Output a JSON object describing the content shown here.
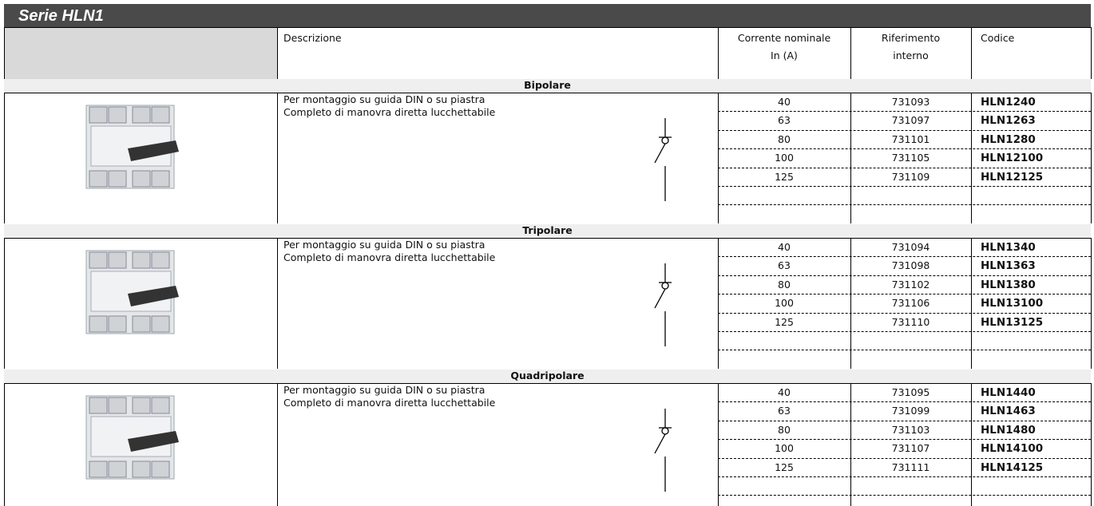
{
  "header": {
    "title": "Serie HLN1"
  },
  "columns": {
    "descrizione": "Descrizione",
    "corrente": [
      "Corrente nominale",
      "In (A)"
    ],
    "riferimento": [
      "Riferimento",
      "interno"
    ],
    "codice": "Codice"
  },
  "sections": [
    {
      "name": "Bipolare",
      "description": [
        "Per montaggio su guida DIN o su piastra",
        "Completo di manovra diretta lucchettabile"
      ],
      "rows": [
        [
          40,
          731093,
          "HLN1240"
        ],
        [
          63,
          731097,
          "HLN1263"
        ],
        [
          80,
          731101,
          "HLN1280"
        ],
        [
          100,
          731105,
          "HLN12100"
        ],
        [
          125,
          731109,
          "HLN12125"
        ]
      ]
    },
    {
      "name": "Tripolare",
      "description": [
        "Per montaggio su guida DIN o su piastra",
        "Completo di manovra diretta lucchettabile"
      ],
      "rows": [
        [
          40,
          731094,
          "HLN1340"
        ],
        [
          63,
          731098,
          "HLN1363"
        ],
        [
          80,
          731102,
          "HLN1380"
        ],
        [
          100,
          731106,
          "HLN13100"
        ],
        [
          125,
          731110,
          "HLN13125"
        ]
      ]
    },
    {
      "name": "Quadripolare",
      "description": [
        "Per montaggio su guida DIN o su piastra",
        "Completo di manovra diretta lucchettabile"
      ],
      "rows": [
        [
          40,
          731095,
          "HLN1440"
        ],
        [
          63,
          731099,
          "HLN1463"
        ],
        [
          80,
          731103,
          "HLN1480"
        ],
        [
          100,
          731107,
          "HLN14100"
        ],
        [
          125,
          731111,
          "HLN14125"
        ]
      ]
    }
  ]
}
